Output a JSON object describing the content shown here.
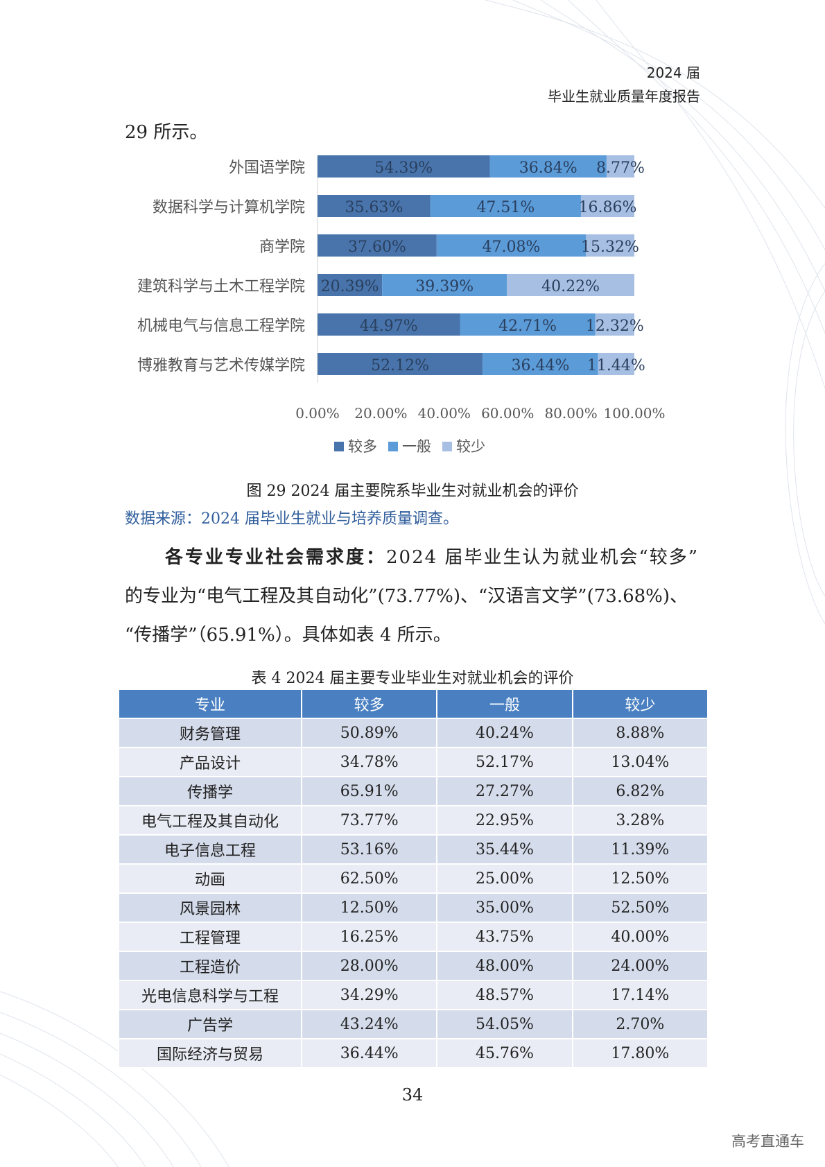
{
  "header": {
    "line1": "2024 届",
    "line2": "毕业生就业质量年度报告"
  },
  "intro": "29 所示。",
  "chart_data": {
    "type": "bar",
    "orientation": "horizontal",
    "stacked": true,
    "categories": [
      "外国语学院",
      "数据科学与计算机学院",
      "商学院",
      "建筑科学与土木工程学院",
      "机械电气与信息工程学院",
      "博雅教育与艺术传媒学院"
    ],
    "series": [
      {
        "name": "较多",
        "values": [
          54.39,
          35.63,
          37.6,
          20.39,
          44.97,
          52.12
        ],
        "labels": [
          "54.39%",
          "35.63%",
          "37.60%",
          "20.39%",
          "44.97%",
          "52.12%"
        ],
        "color": "#4874ab"
      },
      {
        "name": "一般",
        "values": [
          36.84,
          47.51,
          47.08,
          39.39,
          42.71,
          36.44
        ],
        "labels": [
          "36.84%",
          "47.51%",
          "47.08%",
          "39.39%",
          "42.71%",
          "36.44%"
        ],
        "color": "#5b9bd8"
      },
      {
        "name": "较少",
        "values": [
          8.77,
          16.86,
          15.32,
          40.22,
          12.32,
          11.44
        ],
        "labels": [
          "8.77%",
          "16.86%",
          "15.32%",
          "40.22%",
          "12.32%",
          "11.44%"
        ],
        "color": "#a7bfe2"
      }
    ],
    "xlim": [
      0,
      100
    ],
    "xticks": [
      "0.00%",
      "20.00%",
      "40.00%",
      "60.00%",
      "80.00%",
      "100.00%"
    ],
    "legend": "bottom",
    "grid": false
  },
  "figure_caption": "图 29 2024 届主要院系毕业生对就业机会的评价",
  "source": "数据来源：2024 届毕业生就业与培养质量调查。",
  "paragraph": {
    "bold_lead": "各专业专业社会需求度：",
    "line1": "2024 届毕业生认为就业机会“较多”",
    "line2": "的专业为“电气工程及其自动化”(73.77%)、“汉语言文学”(73.68%)、",
    "line3": "“传播学”（65.91%）。具体如表 4 所示。"
  },
  "table_caption": "表 4 2024 届主要专业毕业生对就业机会的评价",
  "table": {
    "headers": [
      "专业",
      "较多",
      "一般",
      "较少"
    ],
    "rows": [
      [
        "财务管理",
        "50.89%",
        "40.24%",
        "8.88%"
      ],
      [
        "产品设计",
        "34.78%",
        "52.17%",
        "13.04%"
      ],
      [
        "传播学",
        "65.91%",
        "27.27%",
        "6.82%"
      ],
      [
        "电气工程及其自动化",
        "73.77%",
        "22.95%",
        "3.28%"
      ],
      [
        "电子信息工程",
        "53.16%",
        "35.44%",
        "11.39%"
      ],
      [
        "动画",
        "62.50%",
        "25.00%",
        "12.50%"
      ],
      [
        "风景园林",
        "12.50%",
        "35.00%",
        "52.50%"
      ],
      [
        "工程管理",
        "16.25%",
        "43.75%",
        "40.00%"
      ],
      [
        "工程造价",
        "28.00%",
        "48.00%",
        "24.00%"
      ],
      [
        "光电信息科学与工程",
        "34.29%",
        "48.57%",
        "17.14%"
      ],
      [
        "广告学",
        "43.24%",
        "54.05%",
        "2.70%"
      ],
      [
        "国际经济与贸易",
        "36.44%",
        "45.76%",
        "17.80%"
      ]
    ]
  },
  "page_number": "34",
  "watermark": "高考直通车"
}
